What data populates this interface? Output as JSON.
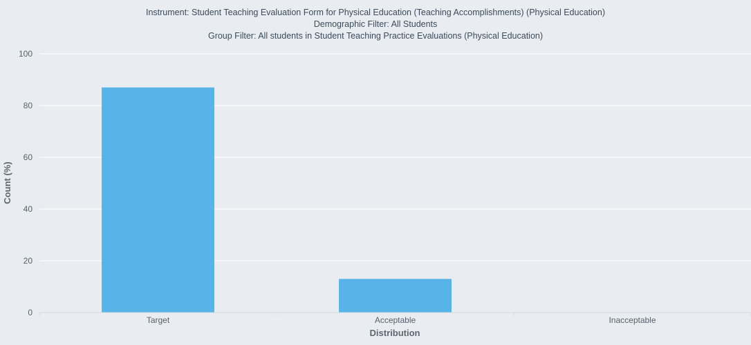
{
  "chart_data": {
    "type": "bar",
    "title_lines": [
      "Instrument: Student Teaching Evaluation Form for Physical Education (Teaching Accomplishments) (Physical Education)",
      "Demographic Filter: All Students",
      "Group Filter: All students in Student Teaching Practice Evaluations (Physical Education)"
    ],
    "categories": [
      "Target",
      "Acceptable",
      "Inacceptable"
    ],
    "values": [
      87,
      13,
      0
    ],
    "xlabel": "Distribution",
    "ylabel": "Count (%)",
    "ylim": [
      0,
      100
    ],
    "yticks": [
      "0",
      "20",
      "40",
      "60",
      "80",
      "100"
    ],
    "grid": true,
    "legend": "none"
  },
  "colors": {
    "bar": "#57b4e8",
    "grid": "#ffffff",
    "background": "#e9edf1"
  }
}
